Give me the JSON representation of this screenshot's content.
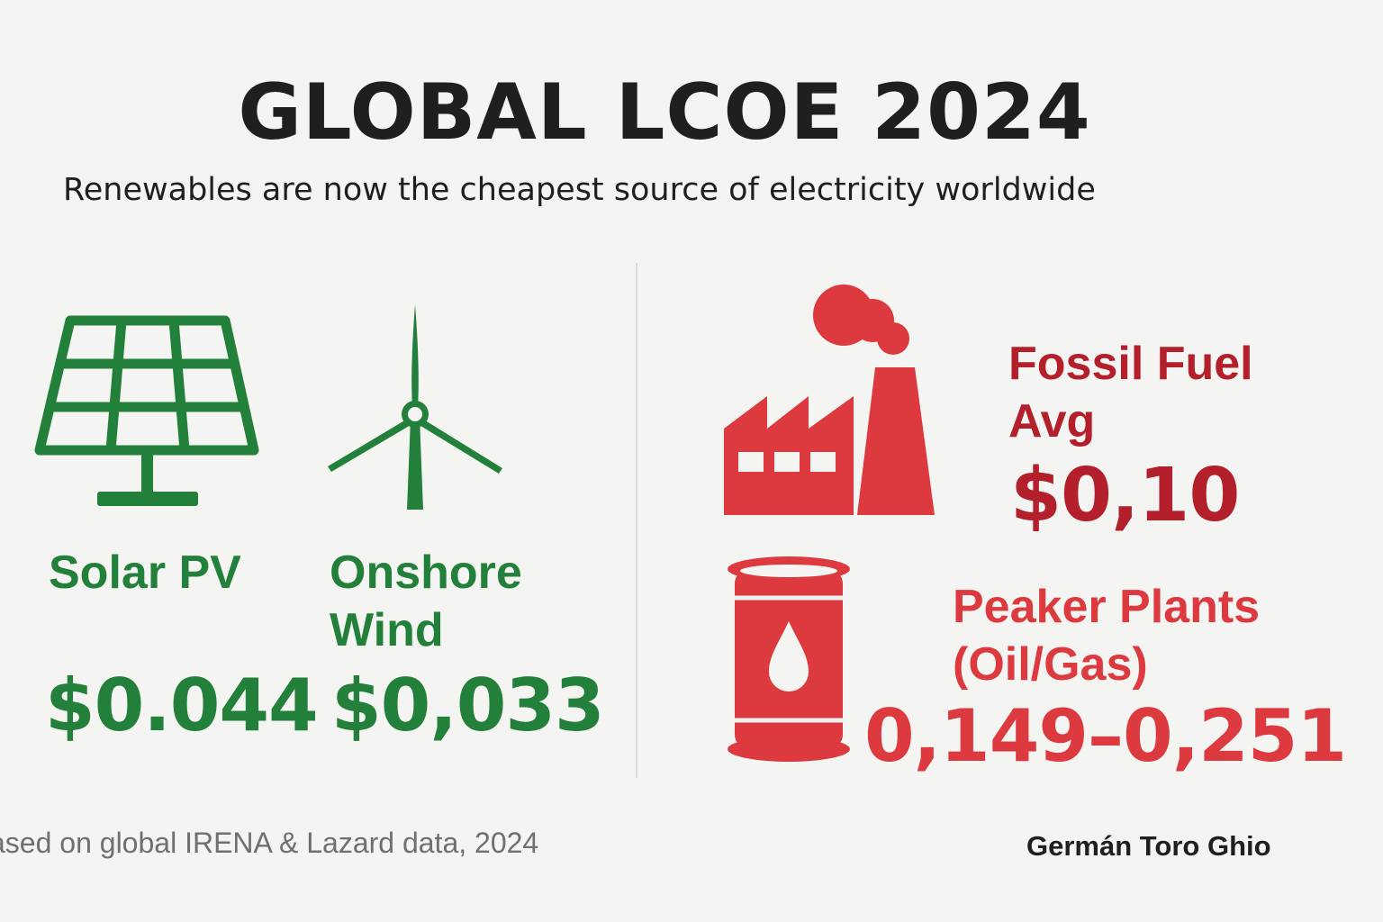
{
  "header": {
    "title": "GLOBAL LCOE 2024",
    "subtitle": "Renewables are now the cheapest source of electricity worldwide"
  },
  "renewables": {
    "solar": {
      "label": "Solar PV",
      "price": "$0.044",
      "icon": "solar-panel-icon"
    },
    "wind": {
      "label_line1": "Onshore",
      "label_line2": "Wind",
      "price": "$0,033",
      "icon": "wind-turbine-icon"
    }
  },
  "fossil": {
    "average": {
      "label_line1": "Fossil Fuel",
      "label_line2": "Avg",
      "price": "$0,10",
      "icon": "factory-icon"
    },
    "peaker": {
      "label_line1": "Peaker Plants",
      "label_line2": "(Oil/Gas)",
      "price": "0,149–0,251",
      "icon": "oil-barrel-icon"
    }
  },
  "footer": {
    "source": "ased on global IRENA & Lazard data, 2024",
    "author": "Germán Toro Ghio"
  },
  "colors": {
    "renewable_green": "#23803a",
    "fossil_red": "#dc3a3e",
    "fossil_dark_red": "#b3202c",
    "background": "#f4f5f2"
  }
}
